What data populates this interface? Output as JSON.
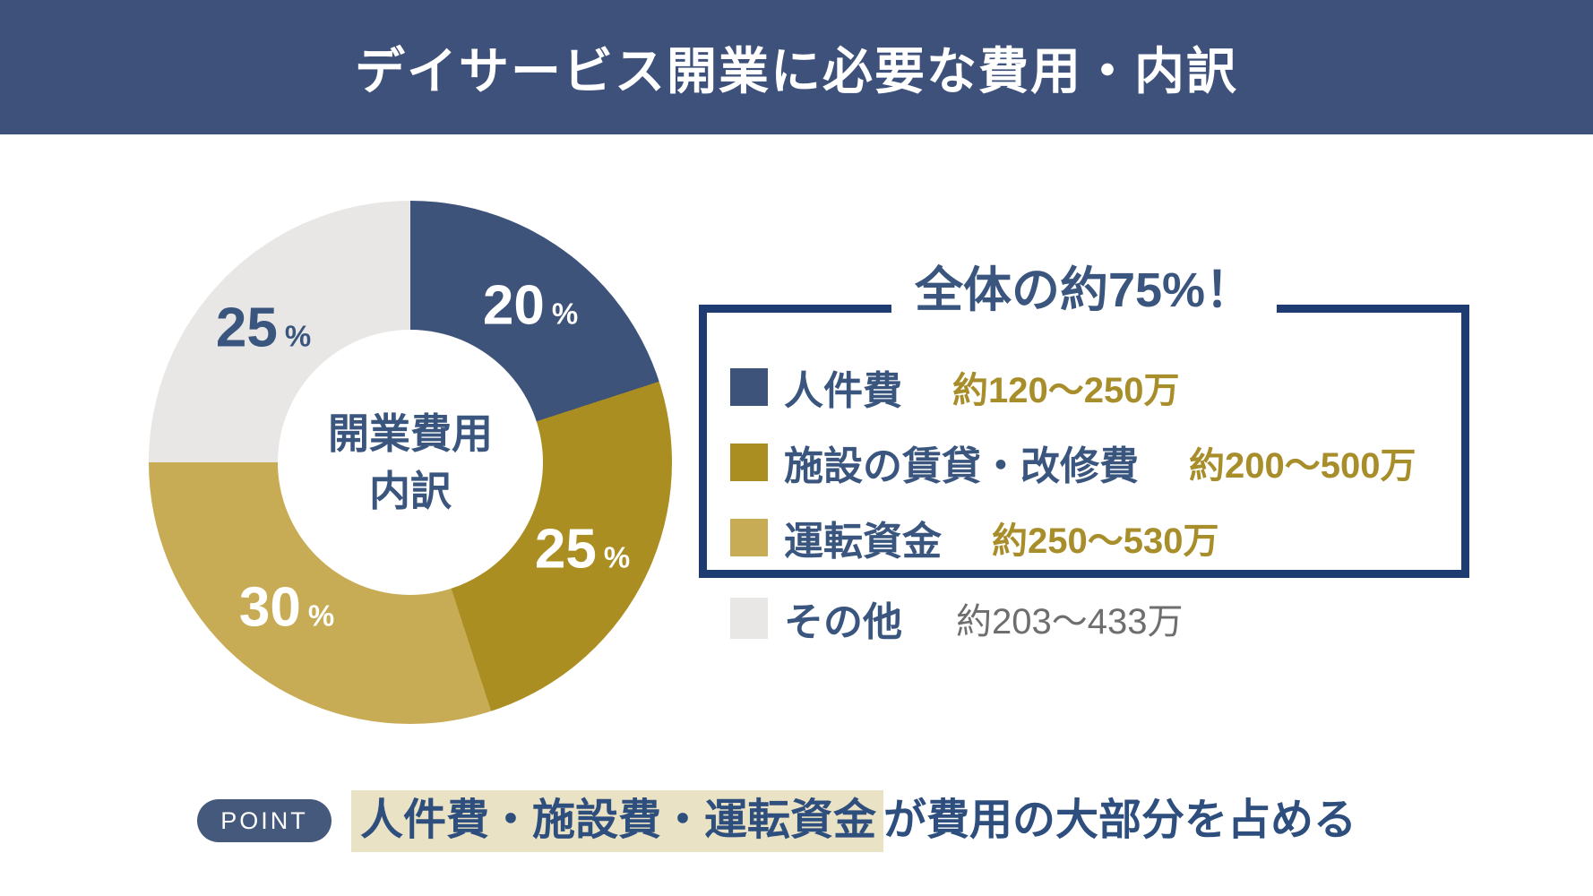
{
  "header": {
    "title": "デイサービス開業に必要な費用・内訳"
  },
  "chart_data": {
    "type": "pie",
    "subtype": "donut",
    "title": "開業費用内訳",
    "center_label_line1": "開業費用",
    "center_label_line2": "内訳",
    "percent_sign": "%",
    "start_angle_deg": 0,
    "direction": "clockwise",
    "segments": [
      {
        "label": "人件費",
        "value": 20,
        "pct": "20",
        "color": "#3E5379",
        "range": "約120〜250万"
      },
      {
        "label": "施設の賃貸・改修費",
        "value": 25,
        "pct": "25",
        "color": "#AB8E22",
        "range": "約200〜500万"
      },
      {
        "label": "運転資金",
        "value": 30,
        "pct": "30",
        "color": "#C8AC55",
        "range": "約250〜530万"
      },
      {
        "label": "その他",
        "value": 25,
        "pct": "25",
        "color": "#E9E7E5",
        "range": "約203〜433万"
      }
    ]
  },
  "callout": {
    "title": "全体の約75%！"
  },
  "point": {
    "badge": "POINT",
    "highlight": "人件費・施設費・運転資金",
    "rest": "が費用の大部分を占める"
  },
  "colors": {
    "header_navy": "#3E517B",
    "navy_text": "#3A567E",
    "gold_text": "#A88D2B",
    "gray_text": "#6E6E6E",
    "box_border": "#1E3B72",
    "badge_navy": "#45597D",
    "bottom_navy": "#2E4E7E",
    "highlight_beige": "#EAE2C4"
  }
}
